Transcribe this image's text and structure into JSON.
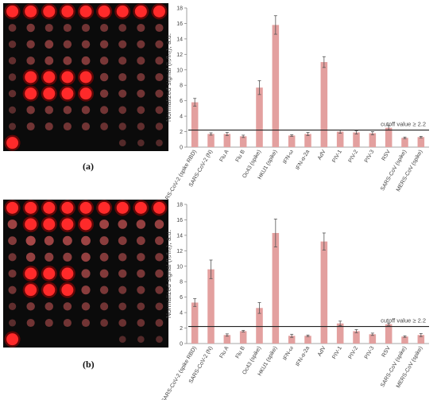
{
  "panels": [
    {
      "label": "(a)",
      "microarray": {
        "rows": [
          [
            1,
            1,
            1,
            1,
            1,
            1,
            1,
            1,
            1
          ],
          [
            0.25,
            0.35,
            0.3,
            0.3,
            0.3,
            0.3,
            0.25,
            0.3,
            0.3
          ],
          [
            0.2,
            0.35,
            0.4,
            0.35,
            0.35,
            0.35,
            0.3,
            0.3,
            0.3
          ],
          [
            0.2,
            0.35,
            0.4,
            0.4,
            0.4,
            0.35,
            0.3,
            0.3,
            0.3
          ],
          [
            0.2,
            1,
            1,
            1,
            1,
            0.35,
            0.3,
            0.3,
            0.3
          ],
          [
            0.2,
            1,
            1,
            1,
            1,
            0.35,
            0.3,
            0.3,
            0.3
          ],
          [
            0.15,
            0.35,
            0.35,
            0.35,
            0.35,
            0.3,
            0.25,
            0.25,
            0.25
          ],
          [
            0.15,
            0.3,
            0.3,
            0.3,
            0.3,
            0.25,
            0.2,
            0.2,
            0.2
          ],
          [
            0.9,
            0,
            0,
            0,
            0,
            0,
            0.1,
            0.1,
            0.1
          ]
        ]
      }
    },
    {
      "label": "(b)",
      "microarray": {
        "rows": [
          [
            1,
            1,
            1,
            1,
            1,
            1,
            1,
            1,
            1
          ],
          [
            0.55,
            0.9,
            0.9,
            0.9,
            0.9,
            0.55,
            0.5,
            0.5,
            0.5
          ],
          [
            0.4,
            0.6,
            0.55,
            0.55,
            0.55,
            0.45,
            0.4,
            0.4,
            0.4
          ],
          [
            0.3,
            0.5,
            0.45,
            0.45,
            0.5,
            0.4,
            0.35,
            0.35,
            0.35
          ],
          [
            0.3,
            1,
            1,
            1,
            0.45,
            0.4,
            0.35,
            0.35,
            0.35
          ],
          [
            0.3,
            1,
            1,
            1,
            0.45,
            0.35,
            0.3,
            0.3,
            0.3
          ],
          [
            0.2,
            0.35,
            0.35,
            0.35,
            0.35,
            0.3,
            0.25,
            0.25,
            0.25
          ],
          [
            0.15,
            0.3,
            0.3,
            0.3,
            0.3,
            0.25,
            0.25,
            0.25,
            0.25
          ],
          [
            0.9,
            0,
            0,
            0,
            0,
            0,
            0.1,
            0.1,
            0.1
          ]
        ]
      }
    }
  ],
  "chart_data": [
    {
      "type": "bar",
      "ylabel": "Normalized signal (Iₛ/Iₙₑ), a.u.",
      "ylim": [
        0,
        18
      ],
      "yticks": [
        0,
        2,
        4,
        6,
        8,
        10,
        12,
        14,
        16,
        18
      ],
      "cutoff": {
        "value": 2.2,
        "label": "cutoff value ≥ 2.2"
      },
      "categories": [
        "SARS-CoV-2 (spike RBD)",
        "SARS-CoV-2 (N)",
        "Flu A",
        "Flu B",
        "Oc43 (spike)",
        "HKU1 (spike)",
        "IFN-ω",
        "IFN-α-2a",
        "AdV",
        "PIV-1",
        "PIV-2",
        "PIV-3",
        "RSV",
        "SARS-CoV (spike)",
        "MERS-CoV (spike)"
      ],
      "values": [
        5.8,
        1.7,
        1.7,
        1.4,
        7.7,
        15.8,
        1.5,
        1.7,
        11.0,
        2.0,
        1.9,
        1.8,
        2.5,
        1.2,
        1.3
      ],
      "errors": [
        0.5,
        0.15,
        0.2,
        0.15,
        0.9,
        1.2,
        0.1,
        0.2,
        0.7,
        0.2,
        0.2,
        0.2,
        0.3,
        0.1,
        0.1
      ],
      "bar_color": "#e3a09f",
      "grid": false
    },
    {
      "type": "bar",
      "ylabel": "Normalized signal (Iₛ/Iₙₑ), a.u.",
      "ylim": [
        0,
        18
      ],
      "yticks": [
        0,
        2,
        4,
        6,
        8,
        10,
        12,
        14,
        16,
        18
      ],
      "cutoff": {
        "value": 2.2,
        "label": "cutoff value ≥ 2.2"
      },
      "categories": [
        "SARS-CoV-2 (spike RBD)",
        "SARS-CoV-2 (N)",
        "Flu A",
        "Flu B",
        "Oc43 (spike)",
        "HKU1 (spike)",
        "IFN-ω",
        "IFN-α-2a",
        "AdV",
        "PIV-1",
        "PIV-2",
        "PIV-3",
        "RSV",
        "SARS-CoV (spike)",
        "MERS-CoV (spike)"
      ],
      "values": [
        5.3,
        9.6,
        1.1,
        1.6,
        4.6,
        14.3,
        1.0,
        1.0,
        13.2,
        2.6,
        1.6,
        1.2,
        2.5,
        0.9,
        1.1
      ],
      "errors": [
        0.5,
        1.2,
        0.15,
        0.1,
        0.7,
        1.8,
        0.2,
        0.1,
        1.1,
        0.3,
        0.2,
        0.15,
        0.15,
        0.1,
        0.2
      ],
      "bar_color": "#e3a09f",
      "grid": false
    }
  ]
}
